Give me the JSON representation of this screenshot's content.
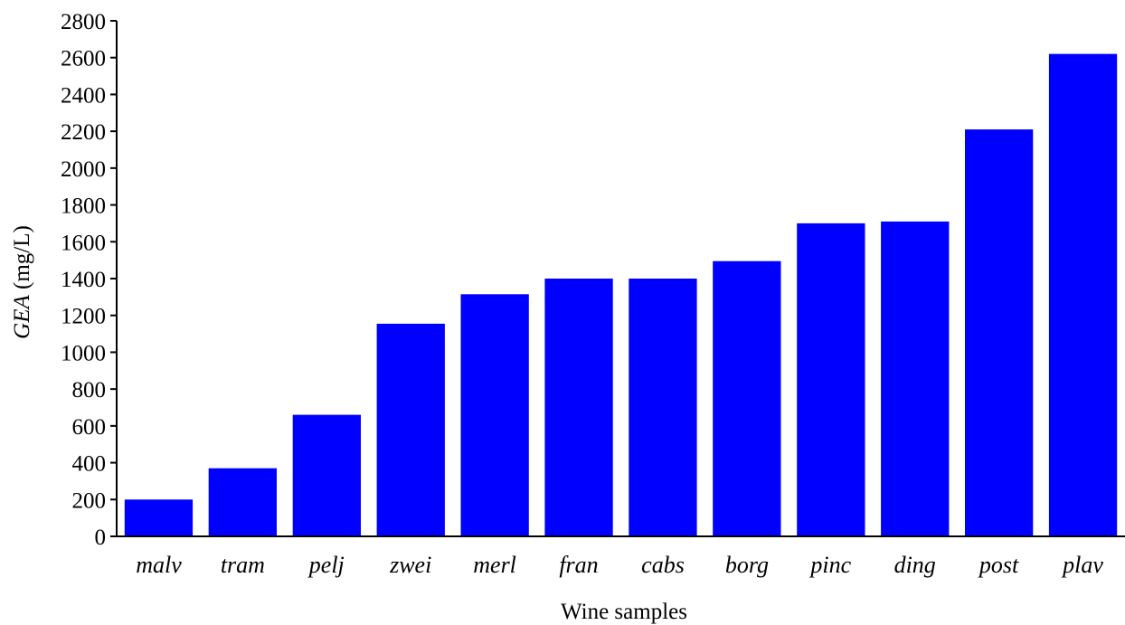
{
  "chart_data": {
    "type": "bar",
    "categories": [
      "malv",
      "tram",
      "pelj",
      "zwei",
      "merl",
      "fran",
      "cabs",
      "borg",
      "pinc",
      "ding",
      "post",
      "plav"
    ],
    "values": [
      200,
      370,
      660,
      1155,
      1315,
      1400,
      1400,
      1495,
      1700,
      1710,
      2210,
      2620
    ],
    "xlabel": "Wine samples",
    "ylabel_italic": "GEA",
    "ylabel_unit": " (mg/L)",
    "ylim": [
      0,
      2800
    ],
    "yticks": [
      0,
      200,
      400,
      600,
      800,
      1000,
      1200,
      1400,
      1600,
      1800,
      2000,
      2200,
      2400,
      2600,
      2800
    ],
    "bar_color": "#0000ff",
    "grid": false,
    "legend": "none"
  }
}
